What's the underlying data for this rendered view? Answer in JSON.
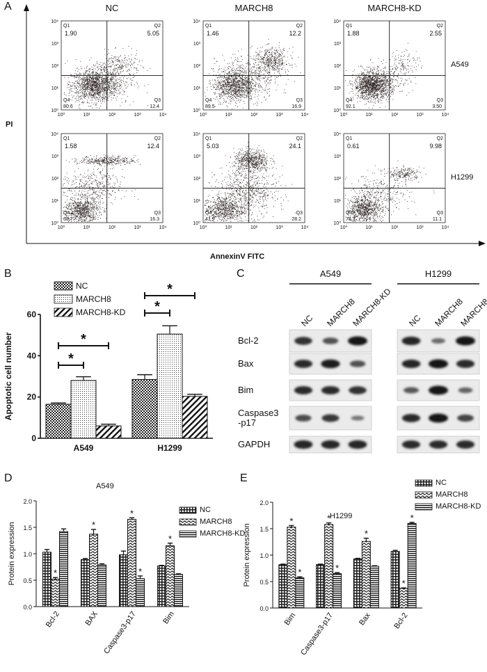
{
  "panels": {
    "a": "A",
    "b": "B",
    "c": "C",
    "d": "D",
    "e": "E"
  },
  "flow": {
    "conditions": [
      "NC",
      "MARCH8",
      "MARCH8-KD"
    ],
    "cell_lines": [
      "A549",
      "H1299"
    ],
    "y_axis_label": "PI",
    "x_axis_label": "AnnexinV FITC",
    "quadrant_names": [
      "Q1",
      "Q2",
      "Q3",
      "Q4"
    ],
    "tick_labels": [
      "10⁰",
      "10¹",
      "10²",
      "10³",
      "10⁴"
    ],
    "plots": [
      {
        "row": 0,
        "col": 0,
        "q1": "1.90",
        "q2": "5.05",
        "q3": "12.4",
        "q4": "80.6"
      },
      {
        "row": 0,
        "col": 1,
        "q1": "1.46",
        "q2": "12.2",
        "q3": "16.9",
        "q4": "89.5"
      },
      {
        "row": 0,
        "col": 2,
        "q1": "1.88",
        "q2": "2.55",
        "q3": "3.50",
        "q4": "92.1"
      },
      {
        "row": 1,
        "col": 0,
        "q1": "1.58",
        "q2": "12.4",
        "q3": "16.3",
        "q4": "69.7"
      },
      {
        "row": 1,
        "col": 1,
        "q1": "5.03",
        "q2": "24.1",
        "q3": "28.2",
        "q4": "41.9"
      },
      {
        "row": 1,
        "col": 2,
        "q1": "0.61",
        "q2": "9.98",
        "q3": "11.1",
        "q4": "78.3"
      }
    ]
  },
  "blot": {
    "groups": [
      "A549",
      "H1299"
    ],
    "lane_labels": [
      "NC",
      "MARCH8",
      "MARCH8-KD"
    ],
    "rows": [
      "Bcl-2",
      "Bax",
      "Bim",
      "Caspase3\n-p17",
      "GAPDH"
    ]
  },
  "chart_data": [
    {
      "panel": "B",
      "type": "bar",
      "categories": [
        "A549",
        "H1299"
      ],
      "series": [
        {
          "name": "NC",
          "values": [
            16.5,
            28.5
          ],
          "errors": [
            0.6,
            2.3
          ]
        },
        {
          "name": "MARCH8",
          "values": [
            28.0,
            50.5
          ],
          "errors": [
            1.8,
            4.0
          ]
        },
        {
          "name": "MARCH8-KD",
          "values": [
            6.0,
            20.3
          ],
          "errors": [
            0.8,
            1.0
          ]
        }
      ],
      "ylabel": "Apoptotic cell number",
      "ylim": [
        0,
        60
      ],
      "yticks": [
        0,
        20,
        40,
        60
      ],
      "legend": "top-left",
      "annotations": [
        "*",
        "*",
        "*",
        "*"
      ]
    },
    {
      "panel": "D",
      "type": "bar",
      "title": "A549",
      "categories": [
        "Bcl-2",
        "BAX",
        "Caspase3-p17",
        "Bim"
      ],
      "series": [
        {
          "name": "NC",
          "values": [
            1.03,
            0.89,
            0.98,
            0.77
          ],
          "errors": [
            0.05,
            0.02,
            0.07,
            0.01
          ]
        },
        {
          "name": "MARCH8",
          "values": [
            0.52,
            1.37,
            1.65,
            1.15
          ],
          "errors": [
            0.03,
            0.09,
            0.03,
            0.05
          ]
        },
        {
          "name": "MARCH8-KD",
          "values": [
            1.42,
            0.79,
            0.53,
            0.61
          ],
          "errors": [
            0.05,
            0.02,
            0.05,
            0.01
          ]
        }
      ],
      "ylabel": "Protein expression",
      "ylim": [
        0,
        2.0
      ],
      "yticks": [
        0.0,
        0.5,
        1.0,
        1.5,
        2.0
      ],
      "legend": "top-right",
      "annotations": [
        "*",
        "*",
        "*",
        "*",
        "*"
      ]
    },
    {
      "panel": "E",
      "type": "bar",
      "title": "H1299",
      "categories": [
        "Bim",
        "Caspase3-p17",
        "Bax",
        "Bcl-2"
      ],
      "series": [
        {
          "name": "NC",
          "values": [
            0.82,
            0.82,
            0.93,
            1.07
          ],
          "errors": [
            0.01,
            0.01,
            0.01,
            0.02
          ]
        },
        {
          "name": "MARCH8",
          "values": [
            1.53,
            1.58,
            1.26,
            0.37
          ],
          "errors": [
            0.03,
            0.03,
            0.06,
            0.01
          ]
        },
        {
          "name": "MARCH8-KD",
          "values": [
            0.57,
            0.65,
            0.79,
            1.6
          ],
          "errors": [
            0.02,
            0.02,
            0.01,
            0.02
          ]
        }
      ],
      "ylabel": "Protein expression",
      "ylim": [
        0,
        2.0
      ],
      "yticks": [
        0.0,
        0.5,
        1.0,
        1.5,
        2.0
      ],
      "legend": "top-right",
      "annotations": [
        "*",
        "*",
        "*",
        "*",
        "*"
      ]
    }
  ],
  "colors": {
    "ink": "#111111",
    "dots": "#2a2020",
    "band": "#1c1c1c",
    "blot_bg": "#ebebeb"
  }
}
